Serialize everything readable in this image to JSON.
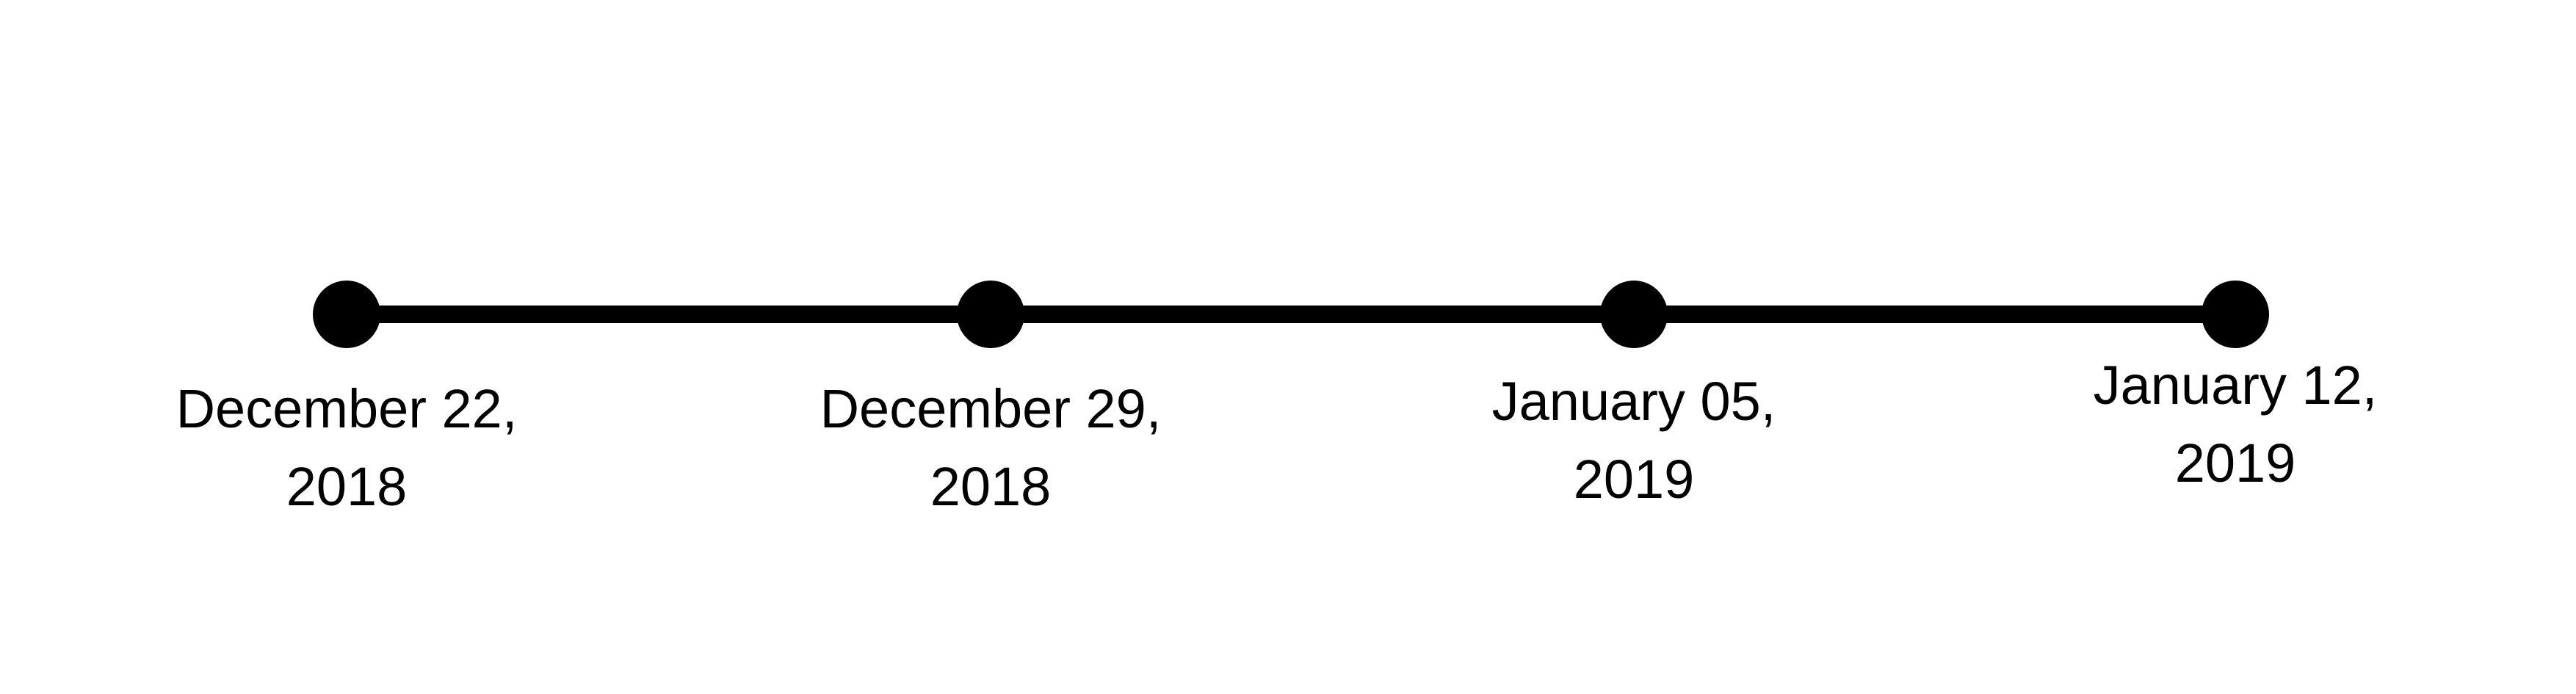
{
  "timeline": {
    "milestones": [
      {
        "line1": "December 22,",
        "line2": "2018"
      },
      {
        "line1": "December 29,",
        "line2": "2018"
      },
      {
        "line1": "January 05,",
        "line2": "2019"
      },
      {
        "line1": "January 12,",
        "line2": "2019"
      }
    ],
    "colors": {
      "line": "#000000",
      "dot": "#000000",
      "text": "#000000",
      "background": "#ffffff"
    }
  }
}
